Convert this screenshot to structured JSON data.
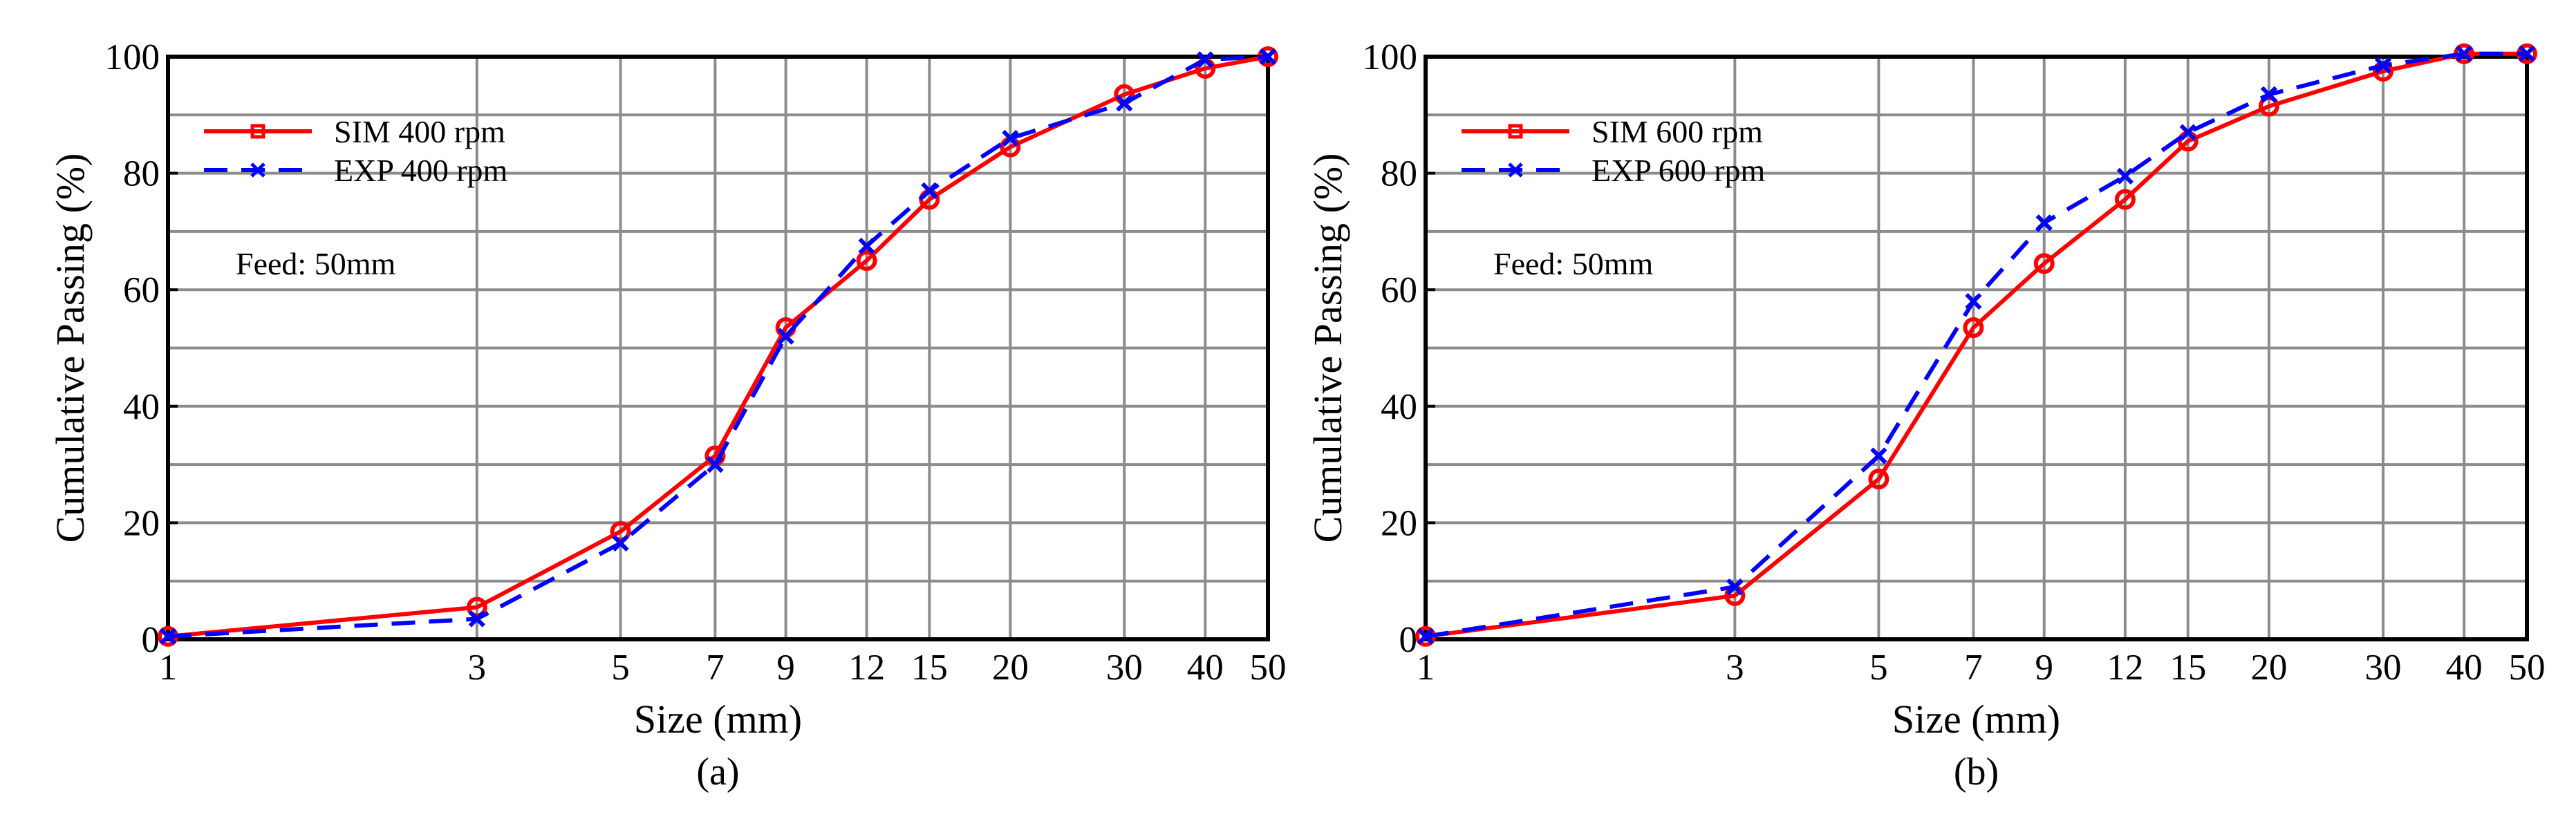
{
  "chart_data": [
    {
      "type": "line",
      "panel_label": "(a)",
      "xscale": "log",
      "xlabel": "Size (mm)",
      "ylabel": "Cumulative Passing (%)",
      "xlim": [
        1,
        50
      ],
      "ylim": [
        0,
        100
      ],
      "x_ticks": [
        1,
        3,
        5,
        7,
        9,
        12,
        15,
        20,
        30,
        40,
        50
      ],
      "y_ticks": [
        0,
        20,
        40,
        60,
        80,
        100
      ],
      "grid": true,
      "legend_position": "top-left",
      "annotation": "Feed: 50mm",
      "x": [
        1,
        3,
        5,
        7,
        9,
        12,
        15,
        20,
        30,
        40,
        50
      ],
      "series": [
        {
          "name": "SIM 400 rpm",
          "color": "#ff0000",
          "dash": "solid",
          "marker": "circle",
          "values": [
            0.5,
            5.5,
            18.5,
            31.5,
            53.5,
            65,
            75.5,
            84.5,
            93.5,
            98,
            100
          ]
        },
        {
          "name": "EXP 400 rpm",
          "color": "#0000ff",
          "dash": "dashed",
          "marker": "x",
          "values": [
            0.5,
            3.5,
            16.5,
            30,
            52,
            67.5,
            77,
            86,
            92,
            99.5,
            100
          ]
        }
      ]
    },
    {
      "type": "line",
      "panel_label": "(b)",
      "xscale": "log",
      "xlabel": "Size (mm)",
      "ylabel": "Cumulative Passing (%)",
      "xlim": [
        1,
        50
      ],
      "ylim": [
        0,
        100
      ],
      "x_ticks": [
        1,
        3,
        5,
        7,
        9,
        12,
        15,
        20,
        30,
        40,
        50
      ],
      "y_ticks": [
        0,
        20,
        40,
        60,
        80,
        100
      ],
      "grid": true,
      "legend_position": "top-left",
      "annotation": "Feed: 50mm",
      "x": [
        1,
        3,
        5,
        7,
        9,
        12,
        15,
        20,
        30,
        40,
        50
      ],
      "series": [
        {
          "name": "SIM 600 rpm",
          "color": "#ff0000",
          "dash": "solid",
          "marker": "circle",
          "values": [
            0.5,
            7.5,
            27.5,
            53.5,
            64.5,
            75.5,
            85.5,
            91.5,
            97.5,
            100.5,
            100.5
          ]
        },
        {
          "name": "EXP 600 rpm",
          "color": "#0000ff",
          "dash": "dashed",
          "marker": "x",
          "values": [
            0.5,
            9,
            31.5,
            58,
            71.5,
            79.5,
            87,
            93.5,
            98.5,
            100.5,
            100.5
          ]
        }
      ]
    }
  ]
}
